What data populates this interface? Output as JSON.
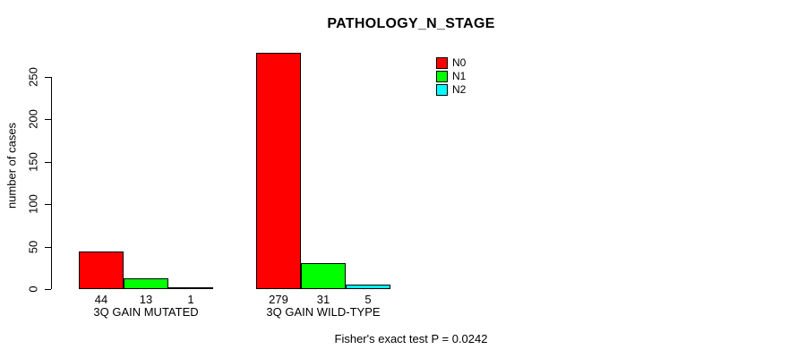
{
  "title": "PATHOLOGY_N_STAGE",
  "annotation": "Fisher's exact test P = 0.0242",
  "chart_data": {
    "type": "bar",
    "title": "PATHOLOGY_N_STAGE",
    "categories": [
      "3Q GAIN MUTATED",
      "3Q GAIN WILD-TYPE"
    ],
    "series": [
      {
        "name": "N0",
        "color": "#FF0000",
        "values": [
          44,
          279
        ]
      },
      {
        "name": "N1",
        "color": "#00FF00",
        "values": [
          13,
          31
        ]
      },
      {
        "name": "N2",
        "color": "#00FFFF",
        "values": [
          1,
          5
        ]
      }
    ],
    "bar_value_labels": [
      [
        44,
        13,
        1
      ],
      [
        279,
        31,
        5
      ]
    ],
    "xlabel": "",
    "ylabel": "number of cases",
    "yticks": [
      0,
      50,
      100,
      150,
      200,
      250
    ],
    "ylim": [
      0,
      280
    ],
    "grid": false,
    "bar_border_color": "#000000",
    "legend_position": "top-right",
    "annotation": "Fisher's exact test P = 0.0242"
  }
}
